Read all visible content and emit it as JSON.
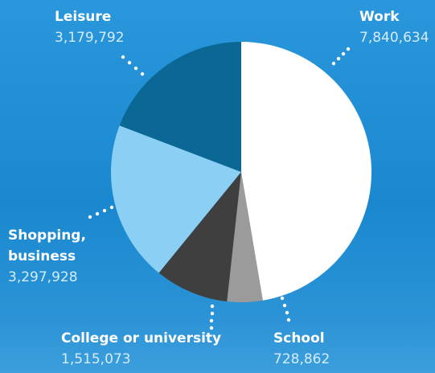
{
  "chart_data": {
    "type": "pie",
    "categories": [
      "Work",
      "School",
      "College or university",
      "Shopping, business",
      "Leisure"
    ],
    "values": [
      7840634,
      728862,
      1515073,
      3297928,
      3179792
    ],
    "value_labels": [
      "7,840,634",
      "728,862",
      "1,515,073",
      "3,297,928",
      "3,179,792"
    ],
    "colors": [
      "#ffffff",
      "#9b9b9b",
      "#3f3f3f",
      "#8ccff5",
      "#0b6894"
    ]
  }
}
